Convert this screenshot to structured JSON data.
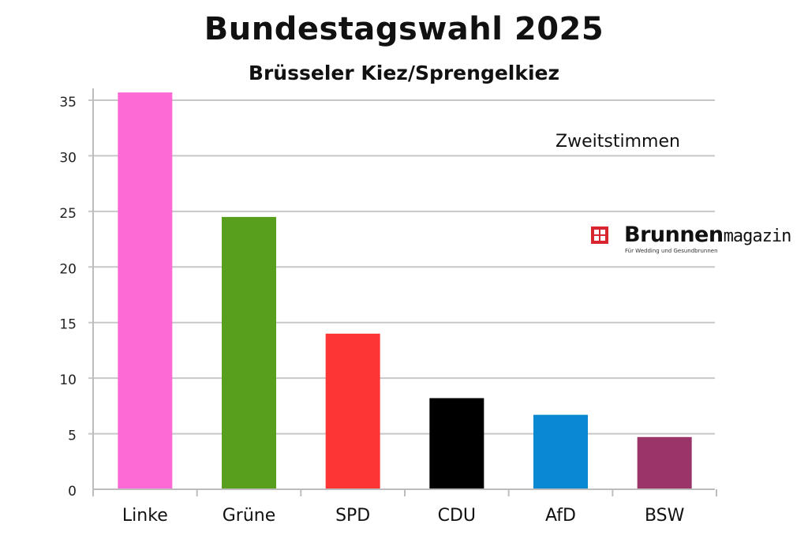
{
  "chart_data": {
    "type": "bar",
    "title": "Bundestagswahl 2025",
    "subtitle": "Brüsseler Kiez/Sprengelkiez",
    "annotation": "Zweitstimmen",
    "categories": [
      "Linke",
      "Grüne",
      "SPD",
      "CDU",
      "AfD",
      "BSW"
    ],
    "values": [
      35.7,
      24.5,
      14.0,
      8.2,
      6.7,
      4.7
    ],
    "colors": [
      "#fd6ad5",
      "#589f1d",
      "#fd3535",
      "#000000",
      "#0a88d1",
      "#9b3468"
    ],
    "ylim": [
      0,
      35
    ],
    "yticks": [
      0,
      5,
      10,
      15,
      20,
      25,
      30,
      35
    ],
    "grid": true,
    "xlabel": "",
    "ylabel": ""
  },
  "logo": {
    "bold": "Brunnen",
    "light": "magazin",
    "tagline": "Für Wedding und Gesundbrunnen"
  }
}
